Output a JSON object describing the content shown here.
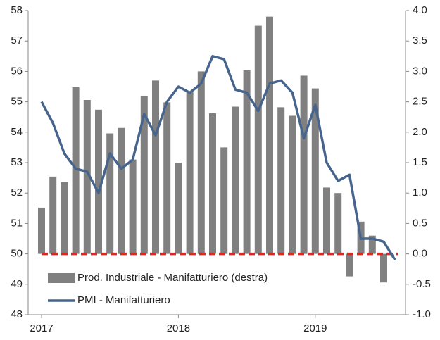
{
  "chart_data": {
    "type": "combo",
    "categories": [
      "2017",
      null,
      null,
      null,
      null,
      null,
      null,
      null,
      null,
      null,
      null,
      null,
      "2018",
      null,
      null,
      null,
      null,
      null,
      null,
      null,
      null,
      null,
      null,
      null,
      "2019",
      null,
      null,
      null,
      null,
      null,
      null,
      null
    ],
    "series": [
      {
        "name": "Prod. Industriale - Manifatturiero  (destra)",
        "type": "bar",
        "axis": "y2",
        "color": "#808080",
        "values": [
          0.76,
          1.27,
          1.18,
          2.74,
          2.53,
          2.37,
          1.98,
          2.07,
          1.55,
          2.6,
          2.85,
          2.49,
          1.5,
          2.66,
          3.0,
          2.31,
          1.75,
          2.42,
          3.02,
          3.75,
          3.9,
          2.41,
          2.27,
          2.93,
          2.72,
          1.09,
          1.0,
          -0.37,
          0.53,
          0.3,
          -0.47,
          null
        ]
      },
      {
        "name": "PMI - Manifatturiero",
        "type": "line",
        "axis": "y",
        "color": "#46648c",
        "values": [
          55.0,
          54.3,
          53.3,
          52.8,
          52.7,
          52.0,
          53.3,
          52.8,
          53.1,
          54.6,
          53.9,
          55.0,
          55.5,
          55.3,
          55.6,
          56.5,
          56.4,
          55.4,
          55.3,
          54.7,
          55.6,
          55.7,
          55.3,
          53.8,
          54.9,
          53.0,
          52.4,
          52.6,
          50.5,
          50.5,
          50.4,
          49.8
        ]
      }
    ],
    "reference_line": {
      "value": 50,
      "color": "#e8231e"
    },
    "ylim": [
      48,
      58
    ],
    "yticks": [
      48,
      49,
      50,
      51,
      52,
      53,
      54,
      55,
      56,
      57,
      58
    ],
    "y2lim": [
      -1,
      4
    ],
    "y2ticks": [
      {
        "value": -1,
        "label": "-1.0"
      },
      {
        "value": -0.5,
        "label": "-0.5"
      },
      {
        "value": 0,
        "label": "0.0"
      },
      {
        "value": 0.5,
        "label": "0.5"
      },
      {
        "value": 1,
        "label": "1.0"
      },
      {
        "value": 1.5,
        "label": "1.5"
      },
      {
        "value": 2,
        "label": "2.0"
      },
      {
        "value": 2.5,
        "label": "2.5"
      },
      {
        "value": 3,
        "label": "3.0"
      },
      {
        "value": 3.5,
        "label": "3.5"
      },
      {
        "value": 4,
        "label": "4.0"
      }
    ],
    "legend": "lower-left"
  }
}
